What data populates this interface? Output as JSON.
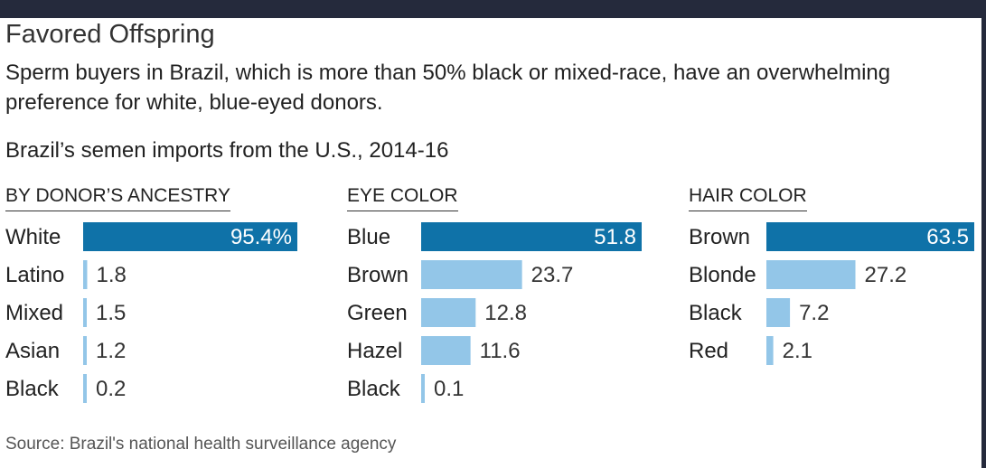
{
  "title": "Favored Offspring",
  "subtitle": "Sperm buyers in Brazil, which is more than 50% black or mixed-race, have an overwhelming preference for white, blue-eyed donors.",
  "chart_heading": "Brazil’s semen imports from the U.S., 2014-16",
  "source": "Source: Brazil's national health surveillance agency",
  "colors": {
    "highlight": "#0f72a8",
    "bar": "#93c6e8",
    "text": "#222222"
  },
  "chart_data": [
    {
      "type": "bar",
      "orientation": "horizontal",
      "title": "BY DONOR’S ANCESTRY",
      "categories": [
        "White",
        "Latino",
        "Mixed",
        "Asian",
        "Black"
      ],
      "values": [
        95.4,
        1.8,
        1.5,
        1.2,
        0.2
      ],
      "value_labels": [
        "95.4%",
        "1.8",
        "1.5",
        "1.2",
        "0.2"
      ]
    },
    {
      "type": "bar",
      "orientation": "horizontal",
      "title": "EYE COLOR",
      "categories": [
        "Blue",
        "Brown",
        "Green",
        "Hazel",
        "Black"
      ],
      "values": [
        51.8,
        23.7,
        12.8,
        11.6,
        0.1
      ],
      "value_labels": [
        "51.8",
        "23.7",
        "12.8",
        "11.6",
        "0.1"
      ]
    },
    {
      "type": "bar",
      "orientation": "horizontal",
      "title": "HAIR COLOR",
      "categories": [
        "Brown",
        "Blonde",
        "Black",
        "Red"
      ],
      "values": [
        63.5,
        27.2,
        7.2,
        2.1
      ],
      "value_labels": [
        "63.5",
        "27.2",
        "7.2",
        "2.1"
      ]
    }
  ]
}
